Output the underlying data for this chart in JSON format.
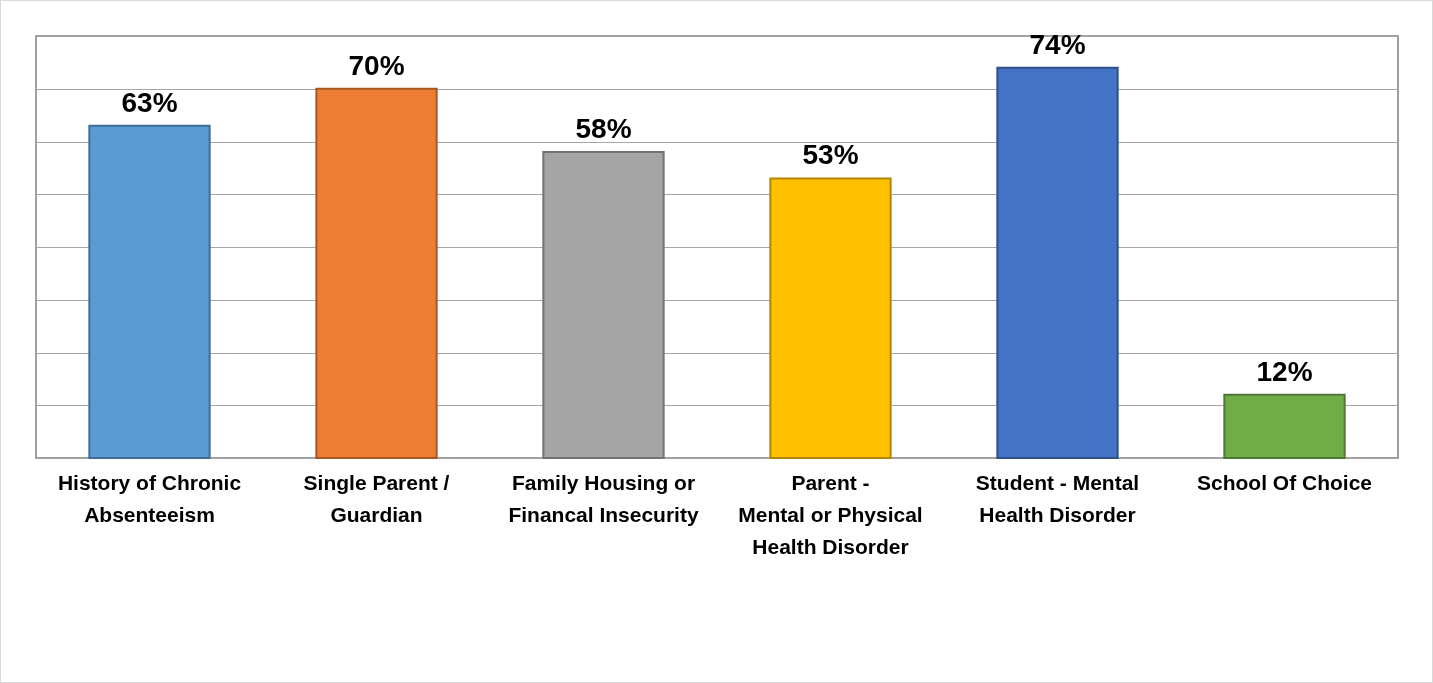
{
  "chart_data": {
    "type": "bar",
    "categories": [
      "History of Chronic\nAbsenteeism",
      "Single Parent /\nGuardian",
      "Family Housing or\nFinancal Insecurity",
      "Parent -\nMental or Physical\nHealth Disorder",
      "Student - Mental\nHealth Disorder",
      "School Of Choice"
    ],
    "values": [
      63,
      70,
      58,
      53,
      74,
      12
    ],
    "value_labels": [
      "63%",
      "70%",
      "58%",
      "53%",
      "74%",
      "12%"
    ],
    "colors": [
      "#5b9bd5",
      "#ed7d31",
      "#a5a5a5",
      "#ffc000",
      "#4472c4",
      "#70ad47"
    ],
    "ylim": [
      0,
      80
    ],
    "yticks": [
      {
        "value": 0,
        "label": null
      },
      {
        "value": 10,
        "label": null
      },
      {
        "value": 20,
        "label": null
      },
      {
        "value": 30,
        "label": null
      },
      {
        "value": 40,
        "label": null
      },
      {
        "value": 50,
        "label": null
      },
      {
        "value": 60,
        "label": null
      },
      {
        "value": 70,
        "label": null
      },
      {
        "value": 80,
        "label": null
      }
    ],
    "grid": "y",
    "tick_labels": "x"
  }
}
